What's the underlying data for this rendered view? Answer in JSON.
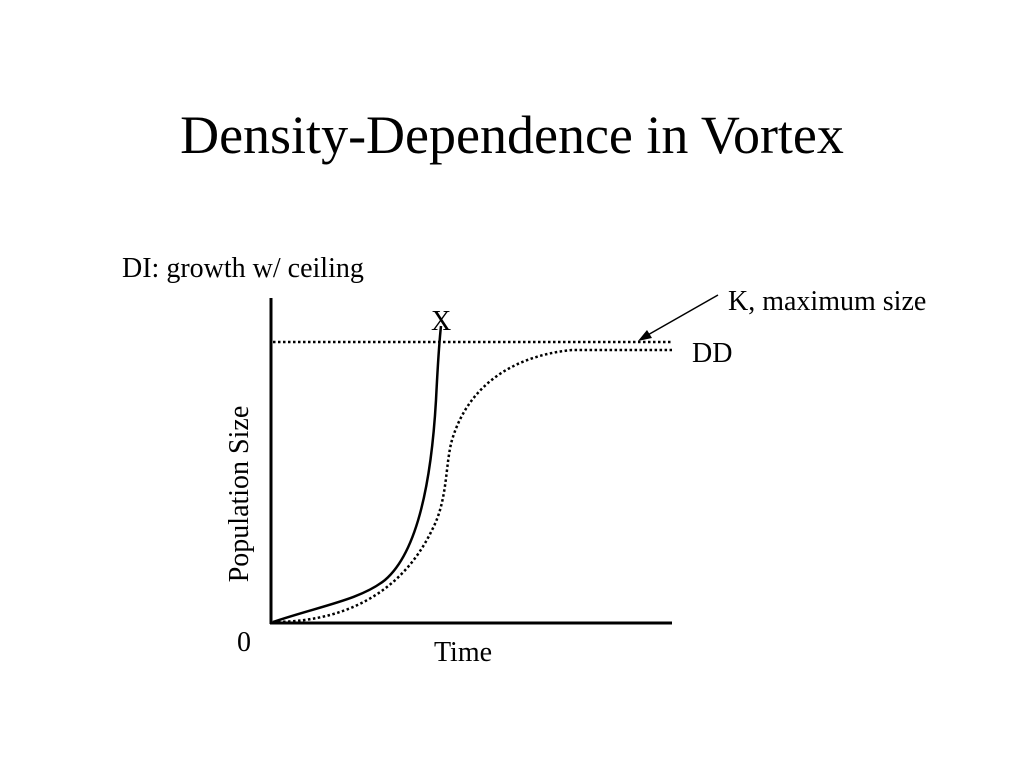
{
  "slide": {
    "title": "Density-Dependence in Vortex"
  },
  "figure": {
    "subtitle": "DI: growth w/ ceiling",
    "y_axis_label": "Population Size",
    "x_axis_label": "Time",
    "origin_label": "0",
    "k_label": "K, maximum size",
    "di_curve_label": "X",
    "dd_curve_label": "DD",
    "colors": {
      "ink": "#000000",
      "background": "#ffffff"
    }
  }
}
